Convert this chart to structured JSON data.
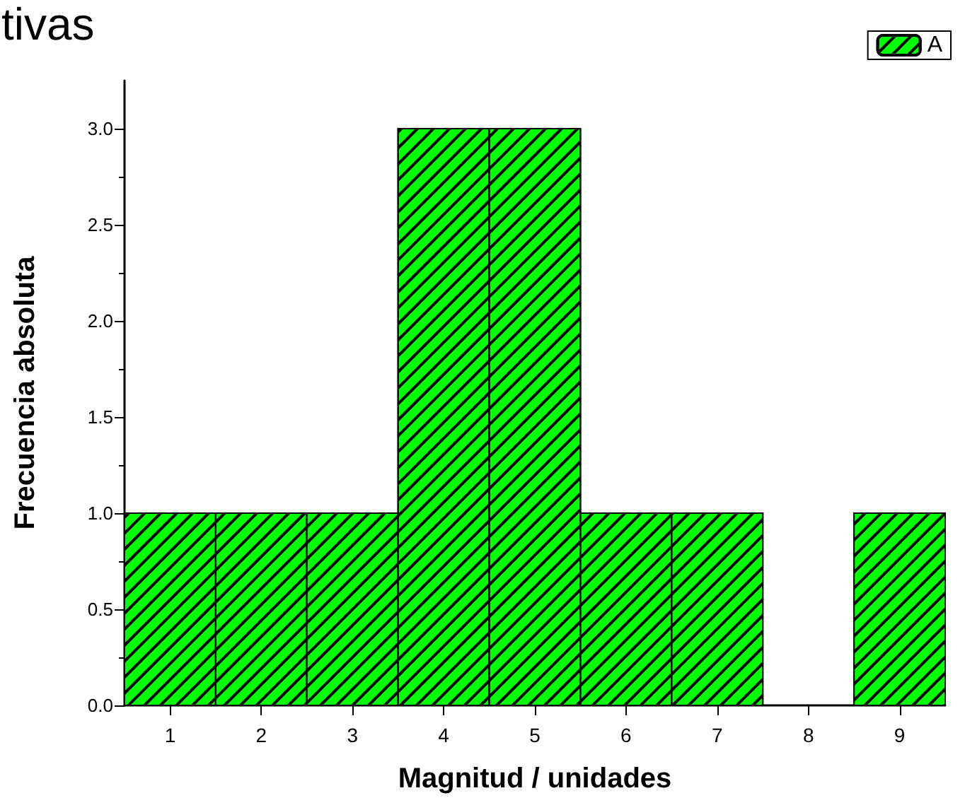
{
  "chart_data": {
    "type": "histogram",
    "title": "tivas",
    "xlabel": "Magnitud / unidades",
    "ylabel": "Frecuencia absoluta",
    "bins": [
      0.5,
      1.5,
      2.5,
      3.5,
      4.5,
      5.5,
      6.5,
      7.5,
      8.5,
      9.5
    ],
    "series": [
      {
        "name": "A",
        "color": "#00ff00",
        "values": [
          1,
          1,
          1,
          3,
          3,
          1,
          1,
          0,
          1
        ]
      }
    ],
    "xlim": [
      0.5,
      9.5
    ],
    "xticks": [
      1,
      2,
      3,
      4,
      5,
      6,
      7,
      8,
      9
    ],
    "ylim": [
      0,
      3.25
    ],
    "yticks": [
      "0.0",
      0.5,
      "1.0",
      1.5,
      "2.0",
      2.5,
      "3.0"
    ],
    "grid": false,
    "legend": "top right"
  }
}
